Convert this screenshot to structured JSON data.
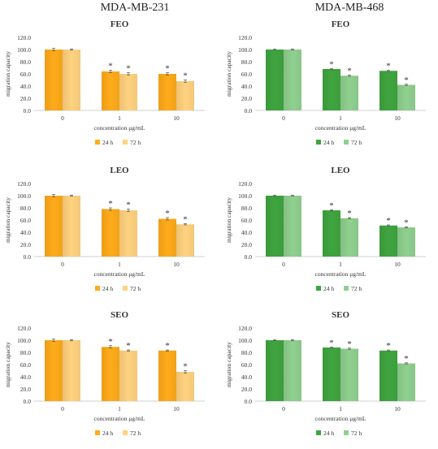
{
  "column_titles": [
    "MDA-MB-231",
    "MDA-MB-468"
  ],
  "chart_data": [
    {
      "type": "bar",
      "title": "FEO",
      "cell_line": "MDA-MB-231",
      "xlabel": "concentration μg/mL",
      "ylabel": "migration capacity",
      "categories": [
        "0",
        "1",
        "10"
      ],
      "ylim": [
        0,
        120
      ],
      "yticks": [
        "0.0",
        "20.0",
        "40.0",
        "60.0",
        "80.0",
        "100.0",
        "120.0"
      ],
      "series": [
        {
          "name": "24 h",
          "values": [
            100,
            64,
            60
          ],
          "errors": [
            2,
            2,
            2
          ]
        },
        {
          "name": "72 h",
          "values": [
            100,
            60,
            48
          ],
          "errors": [
            1,
            2,
            2
          ]
        }
      ],
      "significance": [
        [
          "",
          "*",
          "*"
        ],
        [
          "",
          "*",
          "*"
        ]
      ],
      "colors": [
        "#ffab1a",
        "#ffd27f"
      ],
      "legend": "bottom",
      "grid": false
    },
    {
      "type": "bar",
      "title": "FEO",
      "cell_line": "MDA-MB-468",
      "xlabel": "concentration μg/mL",
      "ylabel": "migration capacity",
      "categories": [
        "0",
        "1",
        "10"
      ],
      "ylim": [
        0,
        120
      ],
      "yticks": [
        "0.0",
        "20.0",
        "40.0",
        "60.0",
        "80.0",
        "100.0",
        "120.0"
      ],
      "series": [
        {
          "name": "24 h",
          "values": [
            100,
            68,
            65
          ],
          "errors": [
            1,
            1,
            1
          ]
        },
        {
          "name": "72 h",
          "values": [
            100,
            57,
            42
          ],
          "errors": [
            1,
            1,
            1
          ]
        }
      ],
      "significance": [
        [
          "",
          "*",
          "*"
        ],
        [
          "",
          "*",
          "*"
        ]
      ],
      "colors": [
        "#3fa53f",
        "#8fd08f"
      ],
      "legend": "bottom",
      "grid": false
    },
    {
      "type": "bar",
      "title": "LEO",
      "cell_line": "MDA-MB-231",
      "xlabel": "concentration μg/mL",
      "ylabel": "migration capacity",
      "categories": [
        "0",
        "1",
        "10"
      ],
      "ylim": [
        0,
        120
      ],
      "yticks": [
        "0.0",
        "20.0",
        "40.0",
        "60.0",
        "80.0",
        "100.0",
        "120.0"
      ],
      "series": [
        {
          "name": "24 h",
          "values": [
            100,
            78,
            62
          ],
          "errors": [
            2,
            2,
            2
          ]
        },
        {
          "name": "72 h",
          "values": [
            100,
            76,
            53
          ],
          "errors": [
            1,
            2,
            1
          ]
        }
      ],
      "significance": [
        [
          "",
          "*",
          "*"
        ],
        [
          "",
          "*",
          "*"
        ]
      ],
      "colors": [
        "#ffab1a",
        "#ffd27f"
      ],
      "legend": "bottom",
      "grid": false
    },
    {
      "type": "bar",
      "title": "LEO",
      "cell_line": "MDA-MB-468",
      "xlabel": "concentration μg/mL",
      "ylabel": "migration capacity",
      "categories": [
        "0",
        "1",
        "10"
      ],
      "ylim": [
        0,
        120
      ],
      "yticks": [
        "0.0",
        "20.0",
        "40.0",
        "60.0",
        "80.0",
        "100.0",
        "120.0"
      ],
      "series": [
        {
          "name": "24 h",
          "values": [
            100,
            76,
            51
          ],
          "errors": [
            1,
            1,
            1
          ]
        },
        {
          "name": "72 h",
          "values": [
            100,
            63,
            48
          ],
          "errors": [
            1,
            1,
            1
          ]
        }
      ],
      "significance": [
        [
          "",
          "*",
          "*"
        ],
        [
          "",
          "*",
          "*"
        ]
      ],
      "colors": [
        "#3fa53f",
        "#8fd08f"
      ],
      "legend": "bottom",
      "grid": false
    },
    {
      "type": "bar",
      "title": "SEO",
      "cell_line": "MDA-MB-231",
      "xlabel": "concentration μg/mL",
      "ylabel": "migration capacity",
      "categories": [
        "0",
        "1",
        "10"
      ],
      "ylim": [
        0,
        120
      ],
      "yticks": [
        "0.0",
        "20.0",
        "40.0",
        "60.0",
        "80.0",
        "100.0",
        "120.0"
      ],
      "series": [
        {
          "name": "24 h",
          "values": [
            100,
            89,
            83
          ],
          "errors": [
            2,
            2,
            1
          ]
        },
        {
          "name": "72 h",
          "values": [
            100,
            83,
            48
          ],
          "errors": [
            1,
            1,
            2
          ]
        }
      ],
      "significance": [
        [
          "",
          "*",
          "*"
        ],
        [
          "",
          "*",
          "*"
        ]
      ],
      "colors": [
        "#ffab1a",
        "#ffd27f"
      ],
      "legend": "bottom",
      "grid": false
    },
    {
      "type": "bar",
      "title": "SEO",
      "cell_line": "MDA-MB-468",
      "xlabel": "concentration μg/mL",
      "ylabel": "migration capacity",
      "categories": [
        "0",
        "1",
        "10"
      ],
      "ylim": [
        0,
        120
      ],
      "yticks": [
        "0.0",
        "20.0",
        "40.0",
        "60.0",
        "80.0",
        "100.0",
        "120.0"
      ],
      "series": [
        {
          "name": "24 h",
          "values": [
            100,
            88,
            83
          ],
          "errors": [
            1,
            1,
            1
          ]
        },
        {
          "name": "72 h",
          "values": [
            100,
            86,
            62
          ],
          "errors": [
            1,
            1,
            1
          ]
        }
      ],
      "significance": [
        [
          "",
          "*",
          "*"
        ],
        [
          "",
          "*",
          "*"
        ]
      ],
      "colors": [
        "#3fa53f",
        "#8fd08f"
      ],
      "legend": "bottom",
      "grid": false
    }
  ]
}
